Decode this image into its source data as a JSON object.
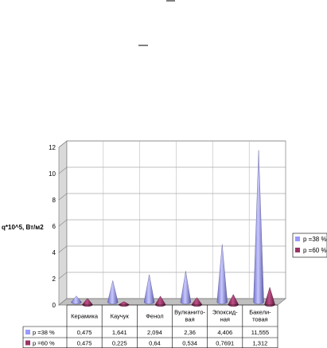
{
  "chart_data": {
    "type": "bar",
    "mark_shape": "cone",
    "ylabel": "q*10^5, Вт/м2",
    "ylim": [
      0,
      12
    ],
    "yticks": [
      "0",
      "2",
      "4",
      "6",
      "8",
      "10",
      "12"
    ],
    "grid": true,
    "legend_position": "right",
    "categories": [
      [
        "Керамика"
      ],
      [
        "Каучук"
      ],
      [
        "Фенол"
      ],
      [
        "Вулканито-",
        "вая"
      ],
      [
        "Эпоксид-",
        "ная"
      ],
      [
        "Бакели-",
        "товая"
      ]
    ],
    "series": [
      {
        "name": "p =38 %",
        "color": "#9999ff",
        "values": [
          0.475,
          1.641,
          2.094,
          2.36,
          4.406,
          11.555
        ],
        "labels": [
          "0,475",
          "1,641",
          "2,094",
          "2,36",
          "4,406",
          "11,555"
        ]
      },
      {
        "name": "p =60 %",
        "color": "#993366",
        "values": [
          0.475,
          0.225,
          0.64,
          0.534,
          0.7691,
          1.312
        ],
        "labels": [
          "0,475",
          "0,225",
          "0,64",
          "0,534",
          "0,7691",
          "1,312"
        ]
      }
    ]
  }
}
